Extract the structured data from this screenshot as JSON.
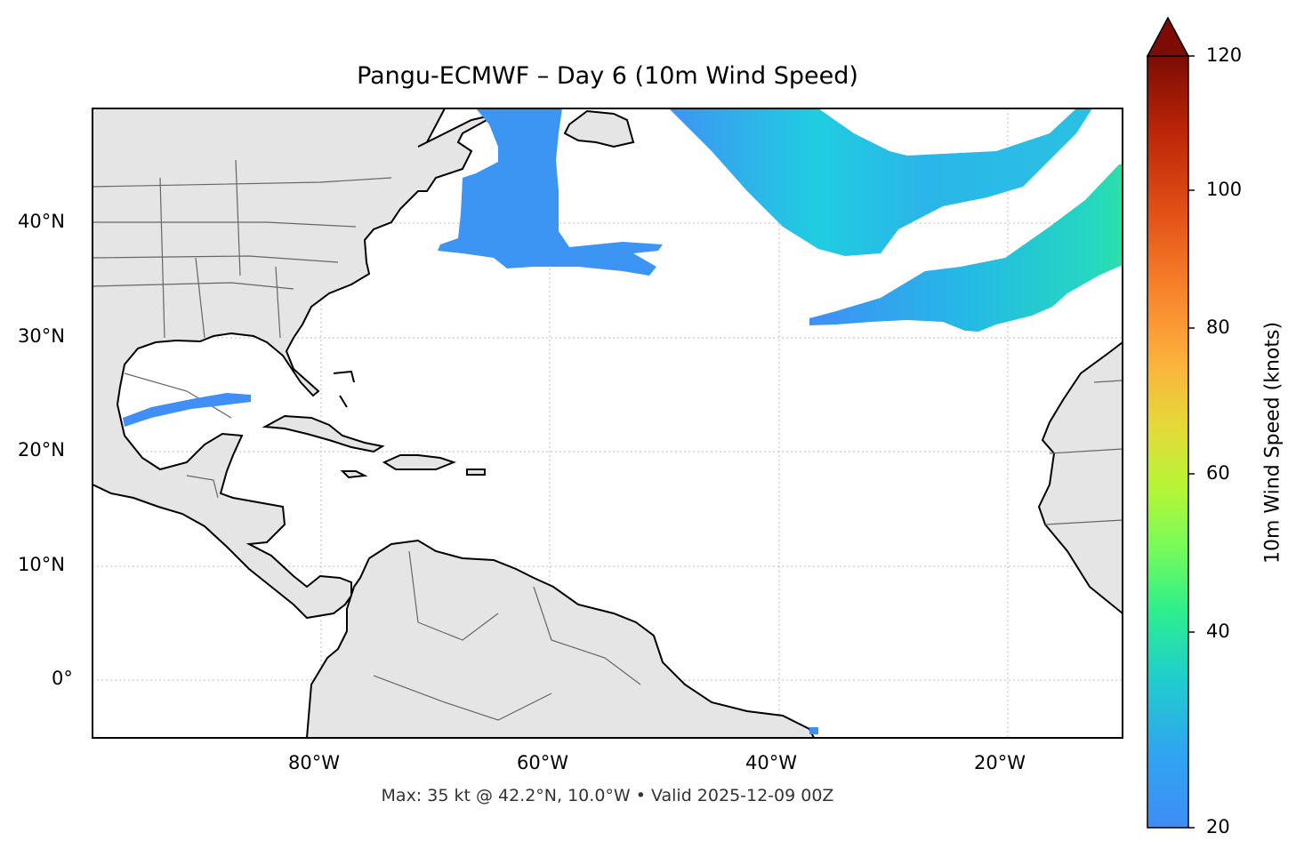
{
  "map": {
    "title": "Pangu-ECMWF – Day 6 (10m Wind Speed)",
    "caption": "Max: 35 kt @ 42.2°N, 10.0°W • Valid 2025-12-09 00Z",
    "lat_labels": [
      "40°N",
      "30°N",
      "20°N",
      "10°N",
      "0°"
    ],
    "lon_labels": [
      "80°W",
      "60°W",
      "40°W",
      "20°W"
    ],
    "extent": {
      "lon_min": -100,
      "lon_max": -10,
      "lat_min": -5,
      "lat_max": 50
    },
    "land_color": "#e5e5e5",
    "coast_color": "#000000",
    "border_color": "#666666",
    "grid": true
  },
  "colorbar": {
    "label": "10m Wind Speed (knots)",
    "ticks": [
      "20",
      "40",
      "60",
      "80",
      "100",
      "120"
    ],
    "range": [
      20,
      120
    ],
    "extend": "max",
    "colormap": "turbo"
  },
  "wind_max": {
    "value_kt": 35,
    "lat": 42.2,
    "lon": -10.0
  }
}
